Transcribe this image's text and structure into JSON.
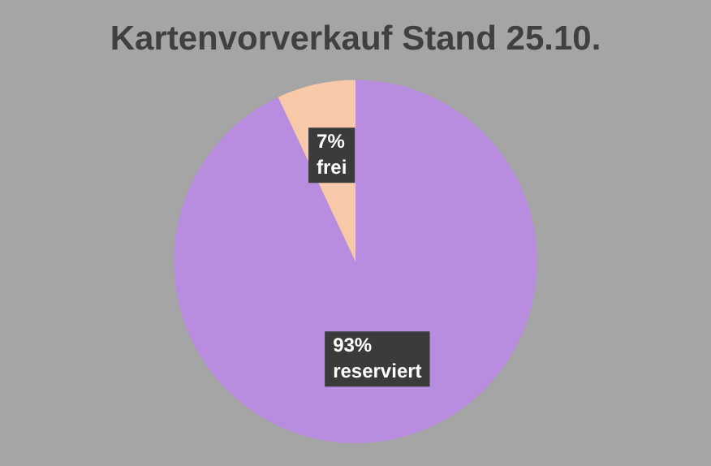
{
  "chart_data": {
    "type": "pie",
    "title": "Kartenvorverkauf Stand 25.10.",
    "categories": [
      "reserviert",
      "frei"
    ],
    "values": [
      93,
      7
    ],
    "colors": [
      "#b88ddf",
      "#f7c9a8"
    ],
    "value_labels": [
      "93%",
      "7%"
    ],
    "legend": false
  }
}
